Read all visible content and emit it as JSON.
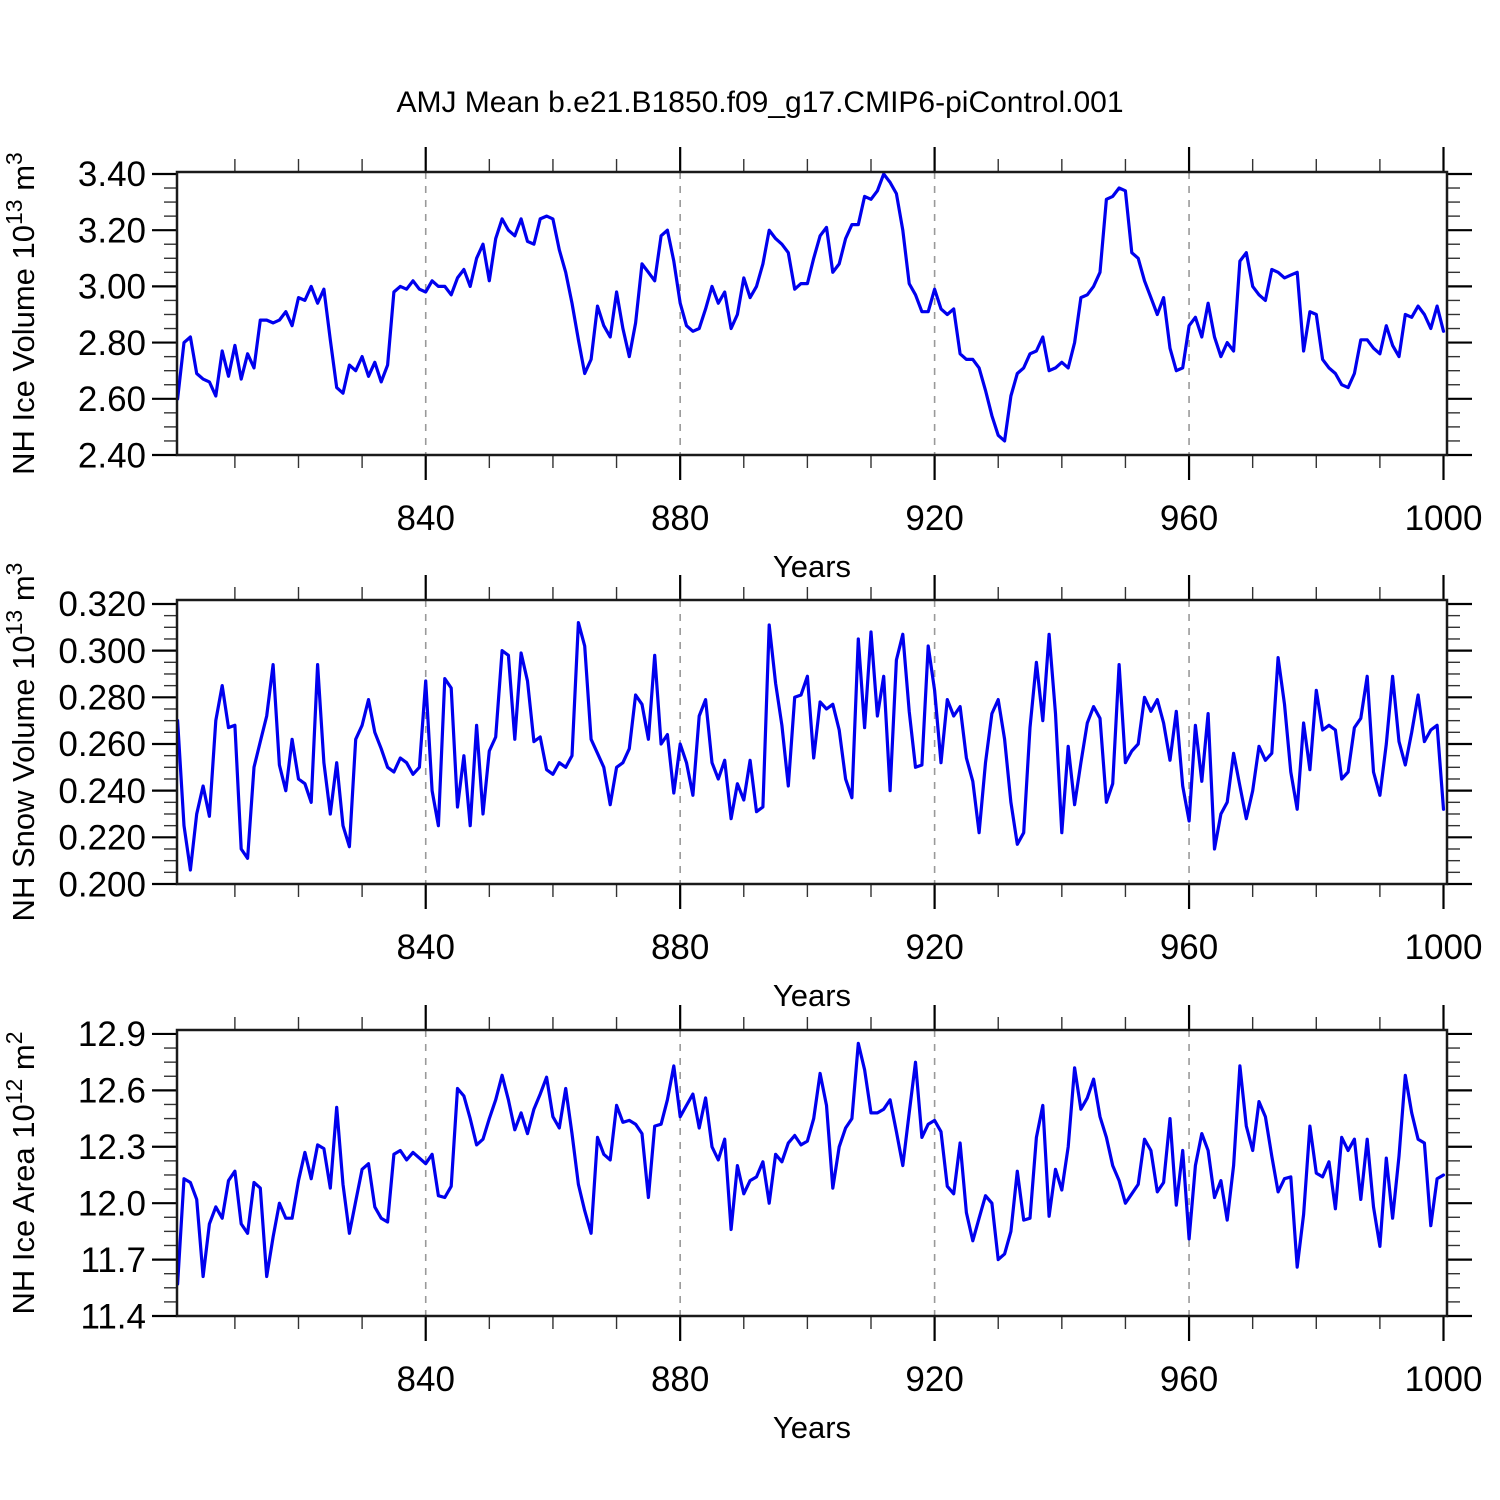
{
  "title": "AMJ Mean b.e21.B1850.f09_g17.CMIP6-piControl.001",
  "figure": {
    "background": "#ffffff",
    "line_color": "#0000EE",
    "grid_color": "#999999",
    "frame_color": "#1a1a1a",
    "major_tick_color": "#000000",
    "minor_tick_color": "#333333"
  },
  "chart_data": [
    {
      "type": "line",
      "name": "nh-ice-volume",
      "ylabel": "NH Ice Volume 10^13 m^3",
      "ylabel_parts": {
        "base": "NH Ice Volume 10",
        "exp": "13",
        "unit": " m",
        "unit_exp": "3"
      },
      "xlabel": "Years",
      "x_start": 801,
      "x_step": 1,
      "x_end": 1000,
      "xlim": [
        800.9,
        1000.55
      ],
      "ylim": [
        2.4,
        3.407
      ],
      "yticks": [
        2.4,
        2.6,
        2.8,
        3.0,
        3.2,
        3.4
      ],
      "ytick_labels": [
        "2.40",
        "2.60",
        "2.80",
        "3.00",
        "3.20",
        "3.40"
      ],
      "ytick_minor_step": 0.05,
      "xticks": [
        840,
        880,
        920,
        960,
        1000
      ],
      "xtick_minor_step": 10,
      "gridlines_x": [
        840,
        880,
        920,
        960
      ],
      "values": [
        2.6,
        2.8,
        2.82,
        2.69,
        2.67,
        2.66,
        2.61,
        2.77,
        2.68,
        2.79,
        2.67,
        2.76,
        2.71,
        2.88,
        2.88,
        2.87,
        2.88,
        2.91,
        2.86,
        2.96,
        2.95,
        3.0,
        2.94,
        2.99,
        2.81,
        2.64,
        2.62,
        2.72,
        2.7,
        2.75,
        2.68,
        2.73,
        2.66,
        2.72,
        2.98,
        3.0,
        2.99,
        3.02,
        2.99,
        2.98,
        3.02,
        3.0,
        3.0,
        2.97,
        3.03,
        3.06,
        3.0,
        3.1,
        3.15,
        3.02,
        3.17,
        3.24,
        3.2,
        3.18,
        3.24,
        3.16,
        3.15,
        3.24,
        3.25,
        3.24,
        3.13,
        3.05,
        2.94,
        2.81,
        2.69,
        2.74,
        2.93,
        2.86,
        2.82,
        2.98,
        2.85,
        2.75,
        2.87,
        3.08,
        3.05,
        3.02,
        3.18,
        3.2,
        3.09,
        2.94,
        2.86,
        2.84,
        2.85,
        2.92,
        3.0,
        2.94,
        2.98,
        2.85,
        2.9,
        3.03,
        2.96,
        3.0,
        3.08,
        3.2,
        3.17,
        3.15,
        3.12,
        2.99,
        3.01,
        3.01,
        3.1,
        3.18,
        3.21,
        3.05,
        3.08,
        3.17,
        3.22,
        3.22,
        3.32,
        3.31,
        3.34,
        3.4,
        3.37,
        3.33,
        3.2,
        3.01,
        2.97,
        2.91,
        2.91,
        2.99,
        2.92,
        2.9,
        2.92,
        2.76,
        2.74,
        2.74,
        2.71,
        2.63,
        2.54,
        2.47,
        2.45,
        2.61,
        2.69,
        2.71,
        2.76,
        2.77,
        2.82,
        2.7,
        2.71,
        2.73,
        2.71,
        2.8,
        2.96,
        2.97,
        3.0,
        3.05,
        3.31,
        3.32,
        3.35,
        3.34,
        3.12,
        3.1,
        3.02,
        2.96,
        2.9,
        2.96,
        2.78,
        2.7,
        2.71,
        2.86,
        2.89,
        2.82,
        2.94,
        2.82,
        2.75,
        2.8,
        2.77,
        3.09,
        3.12,
        3.0,
        2.97,
        2.95,
        3.06,
        3.05,
        3.03,
        3.04,
        3.05,
        2.77,
        2.91,
        2.9,
        2.74,
        2.71,
        2.69,
        2.65,
        2.64,
        2.69,
        2.81,
        2.81,
        2.78,
        2.76,
        2.86,
        2.79,
        2.75,
        2.9,
        2.89,
        2.93,
        2.9,
        2.85,
        2.93,
        2.84
      ]
    },
    {
      "type": "line",
      "name": "nh-snow-volume",
      "ylabel": "NH Snow Volume 10^13 m^3",
      "ylabel_parts": {
        "base": "NH Snow Volume 10",
        "exp": "13",
        "unit": " m",
        "unit_exp": "3"
      },
      "xlabel": "Years",
      "x_start": 801,
      "x_step": 1,
      "x_end": 1000,
      "xlim": [
        800.9,
        1000.55
      ],
      "ylim": [
        0.2,
        0.3217
      ],
      "yticks": [
        0.2,
        0.22,
        0.24,
        0.26,
        0.28,
        0.3,
        0.32
      ],
      "ytick_labels": [
        "0.200",
        "0.220",
        "0.240",
        "0.260",
        "0.280",
        "0.300",
        "0.320"
      ],
      "ytick_minor_step": 0.005,
      "xticks": [
        840,
        880,
        920,
        960,
        1000
      ],
      "xtick_minor_step": 10,
      "gridlines_x": [
        840,
        880,
        920,
        960
      ],
      "values": [
        0.27,
        0.225,
        0.206,
        0.23,
        0.242,
        0.229,
        0.27,
        0.285,
        0.267,
        0.268,
        0.215,
        0.211,
        0.25,
        0.261,
        0.272,
        0.294,
        0.251,
        0.24,
        0.262,
        0.245,
        0.243,
        0.235,
        0.294,
        0.252,
        0.23,
        0.252,
        0.225,
        0.216,
        0.262,
        0.268,
        0.279,
        0.265,
        0.258,
        0.25,
        0.248,
        0.254,
        0.252,
        0.247,
        0.25,
        0.287,
        0.24,
        0.225,
        0.288,
        0.284,
        0.233,
        0.255,
        0.225,
        0.268,
        0.23,
        0.257,
        0.263,
        0.3,
        0.298,
        0.262,
        0.299,
        0.287,
        0.261,
        0.263,
        0.249,
        0.247,
        0.252,
        0.25,
        0.255,
        0.312,
        0.302,
        0.262,
        0.256,
        0.25,
        0.234,
        0.25,
        0.252,
        0.258,
        0.281,
        0.277,
        0.262,
        0.298,
        0.26,
        0.264,
        0.239,
        0.26,
        0.252,
        0.238,
        0.272,
        0.279,
        0.252,
        0.245,
        0.253,
        0.228,
        0.243,
        0.236,
        0.253,
        0.231,
        0.233,
        0.311,
        0.286,
        0.268,
        0.242,
        0.28,
        0.281,
        0.289,
        0.254,
        0.278,
        0.275,
        0.277,
        0.266,
        0.245,
        0.237,
        0.305,
        0.267,
        0.308,
        0.272,
        0.289,
        0.24,
        0.296,
        0.307,
        0.274,
        0.25,
        0.251,
        0.302,
        0.283,
        0.252,
        0.279,
        0.272,
        0.276,
        0.254,
        0.244,
        0.222,
        0.252,
        0.273,
        0.279,
        0.262,
        0.235,
        0.217,
        0.222,
        0.267,
        0.295,
        0.27,
        0.307,
        0.273,
        0.222,
        0.259,
        0.234,
        0.252,
        0.269,
        0.276,
        0.271,
        0.235,
        0.243,
        0.294,
        0.252,
        0.257,
        0.26,
        0.28,
        0.274,
        0.279,
        0.269,
        0.253,
        0.274,
        0.242,
        0.227,
        0.268,
        0.244,
        0.273,
        0.215,
        0.23,
        0.235,
        0.256,
        0.242,
        0.228,
        0.24,
        0.259,
        0.253,
        0.256,
        0.297,
        0.277,
        0.248,
        0.232,
        0.269,
        0.249,
        0.283,
        0.266,
        0.268,
        0.266,
        0.245,
        0.248,
        0.267,
        0.271,
        0.289,
        0.248,
        0.238,
        0.26,
        0.289,
        0.261,
        0.251,
        0.265,
        0.281,
        0.261,
        0.266,
        0.268,
        0.232
      ]
    },
    {
      "type": "line",
      "name": "nh-ice-area",
      "ylabel": "NH Ice Area 10^12 m^2",
      "ylabel_parts": {
        "base": "NH Ice Area 10",
        "exp": "12",
        "unit": " m",
        "unit_exp": "2"
      },
      "xlabel": "Years",
      "x_start": 801,
      "x_step": 1,
      "x_end": 1000,
      "xlim": [
        800.9,
        1000.55
      ],
      "ylim": [
        11.4,
        12.921
      ],
      "yticks": [
        11.4,
        11.7,
        12.0,
        12.3,
        12.6,
        12.9
      ],
      "ytick_labels": [
        "11.4",
        "11.7",
        "12.0",
        "12.3",
        "12.6",
        "12.9"
      ],
      "ytick_minor_step": 0.075,
      "xticks": [
        840,
        880,
        920,
        960,
        1000
      ],
      "xtick_minor_step": 10,
      "gridlines_x": [
        840,
        880,
        920,
        960
      ],
      "values": [
        11.57,
        12.13,
        12.11,
        12.02,
        11.61,
        11.89,
        11.98,
        11.92,
        12.12,
        12.17,
        11.89,
        11.84,
        12.11,
        12.08,
        11.61,
        11.82,
        12.0,
        11.92,
        11.92,
        12.12,
        12.27,
        12.13,
        12.31,
        12.29,
        12.08,
        12.51,
        12.1,
        11.84,
        12.01,
        12.18,
        12.21,
        11.98,
        11.92,
        11.9,
        12.26,
        12.28,
        12.23,
        12.27,
        12.24,
        12.21,
        12.26,
        12.04,
        12.03,
        12.09,
        12.61,
        12.57,
        12.45,
        12.31,
        12.34,
        12.45,
        12.55,
        12.68,
        12.55,
        12.39,
        12.48,
        12.37,
        12.5,
        12.58,
        12.67,
        12.46,
        12.4,
        12.61,
        12.37,
        12.1,
        11.96,
        11.84,
        12.35,
        12.26,
        12.23,
        12.52,
        12.43,
        12.44,
        12.42,
        12.37,
        12.03,
        12.41,
        12.42,
        12.55,
        12.73,
        12.46,
        12.52,
        12.58,
        12.4,
        12.56,
        12.3,
        12.23,
        12.34,
        11.86,
        12.2,
        12.05,
        12.12,
        12.14,
        12.22,
        12.0,
        12.26,
        12.22,
        12.32,
        12.36,
        12.31,
        12.33,
        12.45,
        12.69,
        12.52,
        12.08,
        12.3,
        12.4,
        12.45,
        12.85,
        12.71,
        12.48,
        12.48,
        12.5,
        12.55,
        12.38,
        12.2,
        12.48,
        12.75,
        12.35,
        12.42,
        12.44,
        12.38,
        12.09,
        12.05,
        12.32,
        11.95,
        11.8,
        11.92,
        12.04,
        12.0,
        11.7,
        11.73,
        11.85,
        12.17,
        11.91,
        11.92,
        12.35,
        12.52,
        11.93,
        12.18,
        12.07,
        12.3,
        12.72,
        12.5,
        12.56,
        12.66,
        12.46,
        12.35,
        12.2,
        12.12,
        12.0,
        12.05,
        12.1,
        12.34,
        12.28,
        12.06,
        12.11,
        12.45,
        11.99,
        12.28,
        11.81,
        12.2,
        12.37,
        12.28,
        12.03,
        12.12,
        11.91,
        12.2,
        12.73,
        12.41,
        12.28,
        12.54,
        12.46,
        12.25,
        12.06,
        12.13,
        12.14,
        11.66,
        11.94,
        12.41,
        12.16,
        12.14,
        12.22,
        11.97,
        12.35,
        12.28,
        12.34,
        12.02,
        12.34,
        11.98,
        11.77,
        12.24,
        11.92,
        12.25,
        12.68,
        12.48,
        12.34,
        12.32,
        11.88,
        12.13,
        12.15
      ]
    }
  ]
}
